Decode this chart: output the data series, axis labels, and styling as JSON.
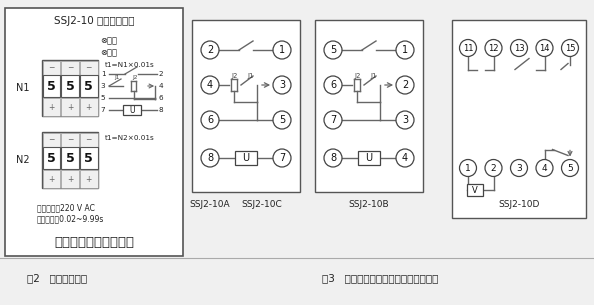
{
  "bg_color": "#f0f0f0",
  "panel_title": "SSJ2-10 型时间继电器",
  "panel_subtitle1": "额定电压：220 V AC",
  "panel_subtitle2": "延时范围：0.02~9.99s",
  "panel_company": "上海上继科技有限公司",
  "panel_n1": "N1",
  "panel_n2": "N2",
  "panel_t1_n1": "t1=N1×0.01s",
  "panel_t1_n2": "t1=N2×0.01s",
  "panel_power": "⊗电源",
  "panel_action": "⊗动作",
  "label_fig2": "图2   继电器面板图",
  "label_fig3": "图3   继电器内部及端子接线图（背视）",
  "label_10A": "SSJ2-10A",
  "label_10C": "SSJ2-10C",
  "label_10B": "SSJ2-10B",
  "label_10D": "SSJ2-10D",
  "line_color": "#666666",
  "text_color": "#222222",
  "border_color": "#555555"
}
